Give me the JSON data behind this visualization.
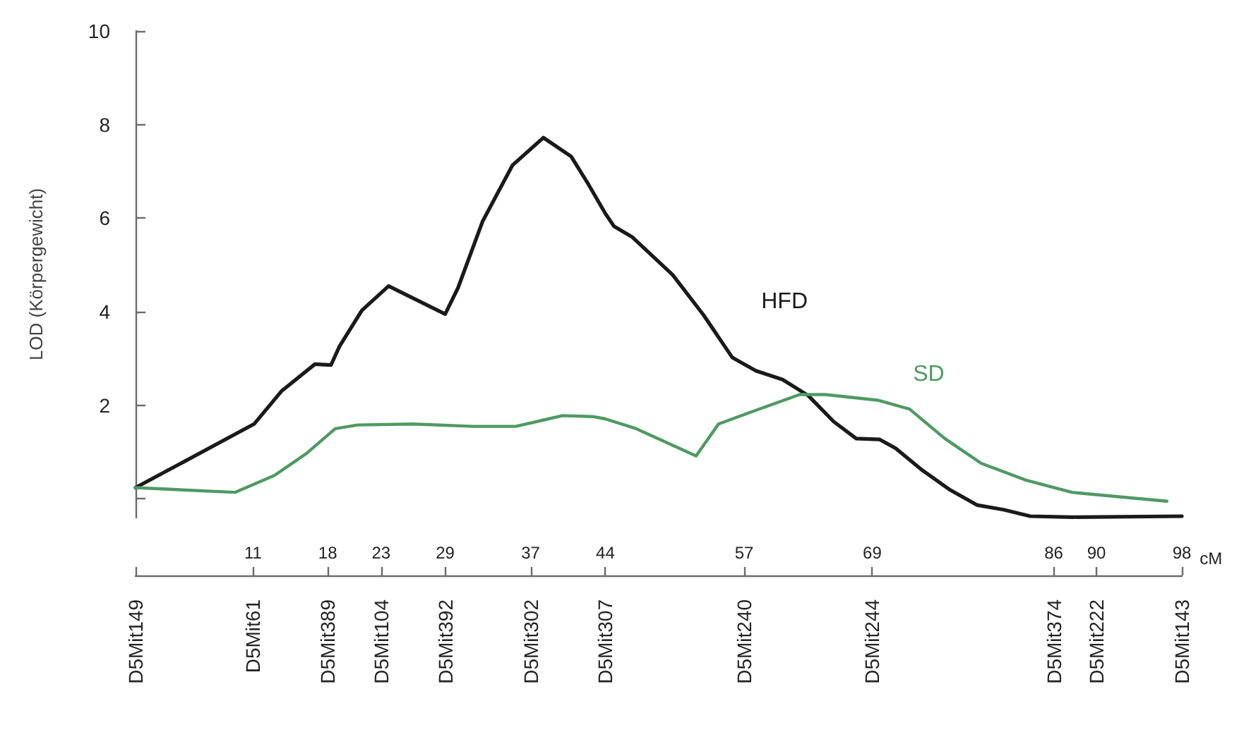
{
  "chart_data": {
    "type": "line",
    "ylabel": "LOD (Körpergewicht)",
    "xlabel": "cM",
    "xlim": [
      0,
      98
    ],
    "xticks": [
      {
        "value": 0,
        "label": null
      },
      11,
      18,
      23,
      29,
      37,
      44,
      57,
      69,
      86,
      90,
      98
    ],
    "ylim": [
      -0.4,
      10
    ],
    "yticks": [
      {
        "value": 0,
        "label": null
      },
      2,
      4,
      6,
      8,
      10
    ],
    "annotations": [
      "D5Mit149",
      "D5Mit61",
      "D5Mit389",
      "D5Mit104",
      "D5Mit392",
      "D5Mit302",
      "D5Mit307",
      "D5Mit240",
      "D5Mit244",
      "D5Mit374",
      "D5Mit222",
      "D5Mit143"
    ],
    "marker": "none",
    "line_style": "solid",
    "series": [
      {
        "name": "HFD",
        "color": "#1a1a1a",
        "x": [
          0,
          11.1,
          13.7,
          16.8,
          18.3,
          19.1,
          21.2,
          23.7,
          29,
          30.2,
          32.5,
          35.3,
          38.2,
          40.8,
          42.4,
          44,
          44.8,
          46.5,
          50.3,
          53.2,
          55.9,
          58.1,
          60.6,
          63,
          65.4,
          67.5,
          69.7,
          71.2,
          73.7,
          76.3,
          78.8,
          81.3,
          83.8,
          87.7,
          98
        ],
        "values": [
          0.24,
          1.6,
          2.31,
          2.88,
          2.86,
          3.26,
          4.03,
          4.55,
          3.95,
          4.51,
          5.93,
          7.13,
          7.72,
          7.32,
          6.73,
          6.1,
          5.83,
          5.6,
          4.79,
          3.93,
          3.02,
          2.74,
          2.55,
          2.21,
          1.65,
          1.29,
          1.27,
          1.08,
          0.61,
          0.19,
          -0.13,
          -0.23,
          -0.37,
          -0.39,
          -0.37
        ]
      },
      {
        "name": "SD",
        "color": "#4e9a62",
        "x": [
          0,
          9.3,
          13,
          16,
          18.7,
          20.8,
          26,
          31.6,
          35.6,
          40,
          42.8,
          44,
          46.9,
          52.5,
          54.6,
          57.7,
          62.2,
          64.6,
          69.5,
          72.5,
          75.8,
          79.2,
          83.4,
          87.7,
          96.6
        ],
        "values": [
          0.24,
          0.14,
          0.5,
          0.97,
          1.5,
          1.58,
          1.6,
          1.55,
          1.55,
          1.78,
          1.76,
          1.71,
          1.5,
          0.92,
          1.6,
          1.86,
          2.23,
          2.23,
          2.11,
          1.92,
          1.29,
          0.76,
          0.4,
          0.14,
          -0.05
        ]
      }
    ]
  }
}
